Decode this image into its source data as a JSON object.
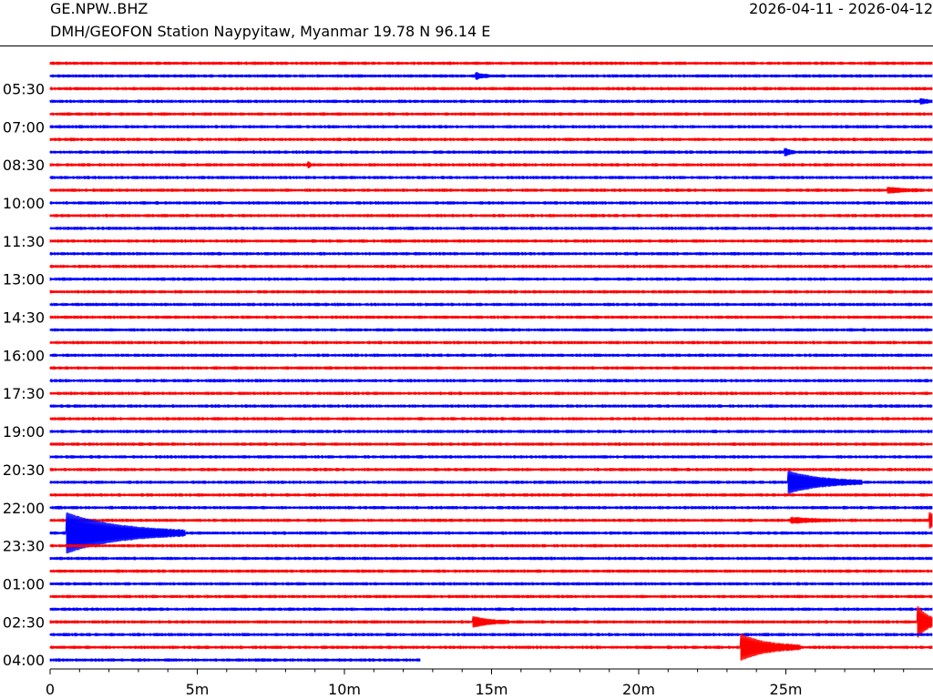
{
  "header": {
    "station_code": "GE.NPW..BHZ",
    "station_description": "DMH/GEOFON Station Naypyitaw, Myanmar  19.78 N 96.14 E",
    "date_range": "2026-04-11 - 2026-04-12"
  },
  "chart_data": {
    "type": "line",
    "title": "GE.NPW..BHZ",
    "subtitle": "DMH/GEOFON Station Naypyitaw, Myanmar  19.78 N 96.14 E",
    "xlabel": "",
    "ylabel": "",
    "xlim": [
      0,
      30
    ],
    "x_tick_labels": [
      {
        "value": 0,
        "label": "0"
      },
      {
        "value": 5,
        "label": "5m"
      },
      {
        "value": 10,
        "label": "10m"
      },
      {
        "value": 15,
        "label": "15m"
      },
      {
        "value": 20,
        "label": "20m"
      },
      {
        "value": 25,
        "label": "25m"
      }
    ],
    "x_minor_tick_step": 1,
    "y_tick_labels": [
      {
        "trace_index": 2,
        "label": "05:30"
      },
      {
        "trace_index": 5,
        "label": "07:00"
      },
      {
        "trace_index": 8,
        "label": "08:30"
      },
      {
        "trace_index": 11,
        "label": "10:00"
      },
      {
        "trace_index": 14,
        "label": "11:30"
      },
      {
        "trace_index": 17,
        "label": "13:00"
      },
      {
        "trace_index": 20,
        "label": "14:30"
      },
      {
        "trace_index": 23,
        "label": "16:00"
      },
      {
        "trace_index": 26,
        "label": "17:30"
      },
      {
        "trace_index": 29,
        "label": "19:00"
      },
      {
        "trace_index": 32,
        "label": "20:30"
      },
      {
        "trace_index": 35,
        "label": "22:00"
      },
      {
        "trace_index": 38,
        "label": "23:30"
      },
      {
        "trace_index": 41,
        "label": "01:00"
      },
      {
        "trace_index": 44,
        "label": "02:30"
      },
      {
        "trace_index": 47,
        "label": "04:00"
      }
    ],
    "trace_count": 48,
    "trace_colors": [
      "#ff0000",
      "#0000ff"
    ],
    "last_trace_end_minute": 12.6,
    "grid": false,
    "events": [
      {
        "trace_index": 1,
        "minute": 14.5,
        "amplitude": 0.35,
        "duration": 0.4
      },
      {
        "trace_index": 3,
        "minute": 29.6,
        "amplitude": 0.3,
        "duration": 0.5
      },
      {
        "trace_index": 8,
        "minute": 8.8,
        "amplitude": 0.3,
        "duration": 0.1
      },
      {
        "trace_index": 7,
        "minute": 25.0,
        "amplitude": 0.4,
        "duration": 0.3
      },
      {
        "trace_index": 10,
        "minute": 28.5,
        "amplitude": 0.3,
        "duration": 1.2
      },
      {
        "trace_index": 33,
        "minute": 25.1,
        "amplitude": 1.4,
        "duration": 2.5
      },
      {
        "trace_index": 36,
        "minute": 25.2,
        "amplitude": 0.3,
        "duration": 1.5
      },
      {
        "trace_index": 36,
        "minute": 29.9,
        "amplitude": 1.0,
        "duration": 0.5
      },
      {
        "trace_index": 37,
        "minute": 0.6,
        "amplitude": 2.6,
        "duration": 4.0
      },
      {
        "trace_index": 44,
        "minute": 14.4,
        "amplitude": 0.6,
        "duration": 1.2
      },
      {
        "trace_index": 44,
        "minute": 29.5,
        "amplitude": 2.0,
        "duration": 0.8
      },
      {
        "trace_index": 46,
        "minute": 23.5,
        "amplitude": 1.6,
        "duration": 2.0
      }
    ]
  }
}
